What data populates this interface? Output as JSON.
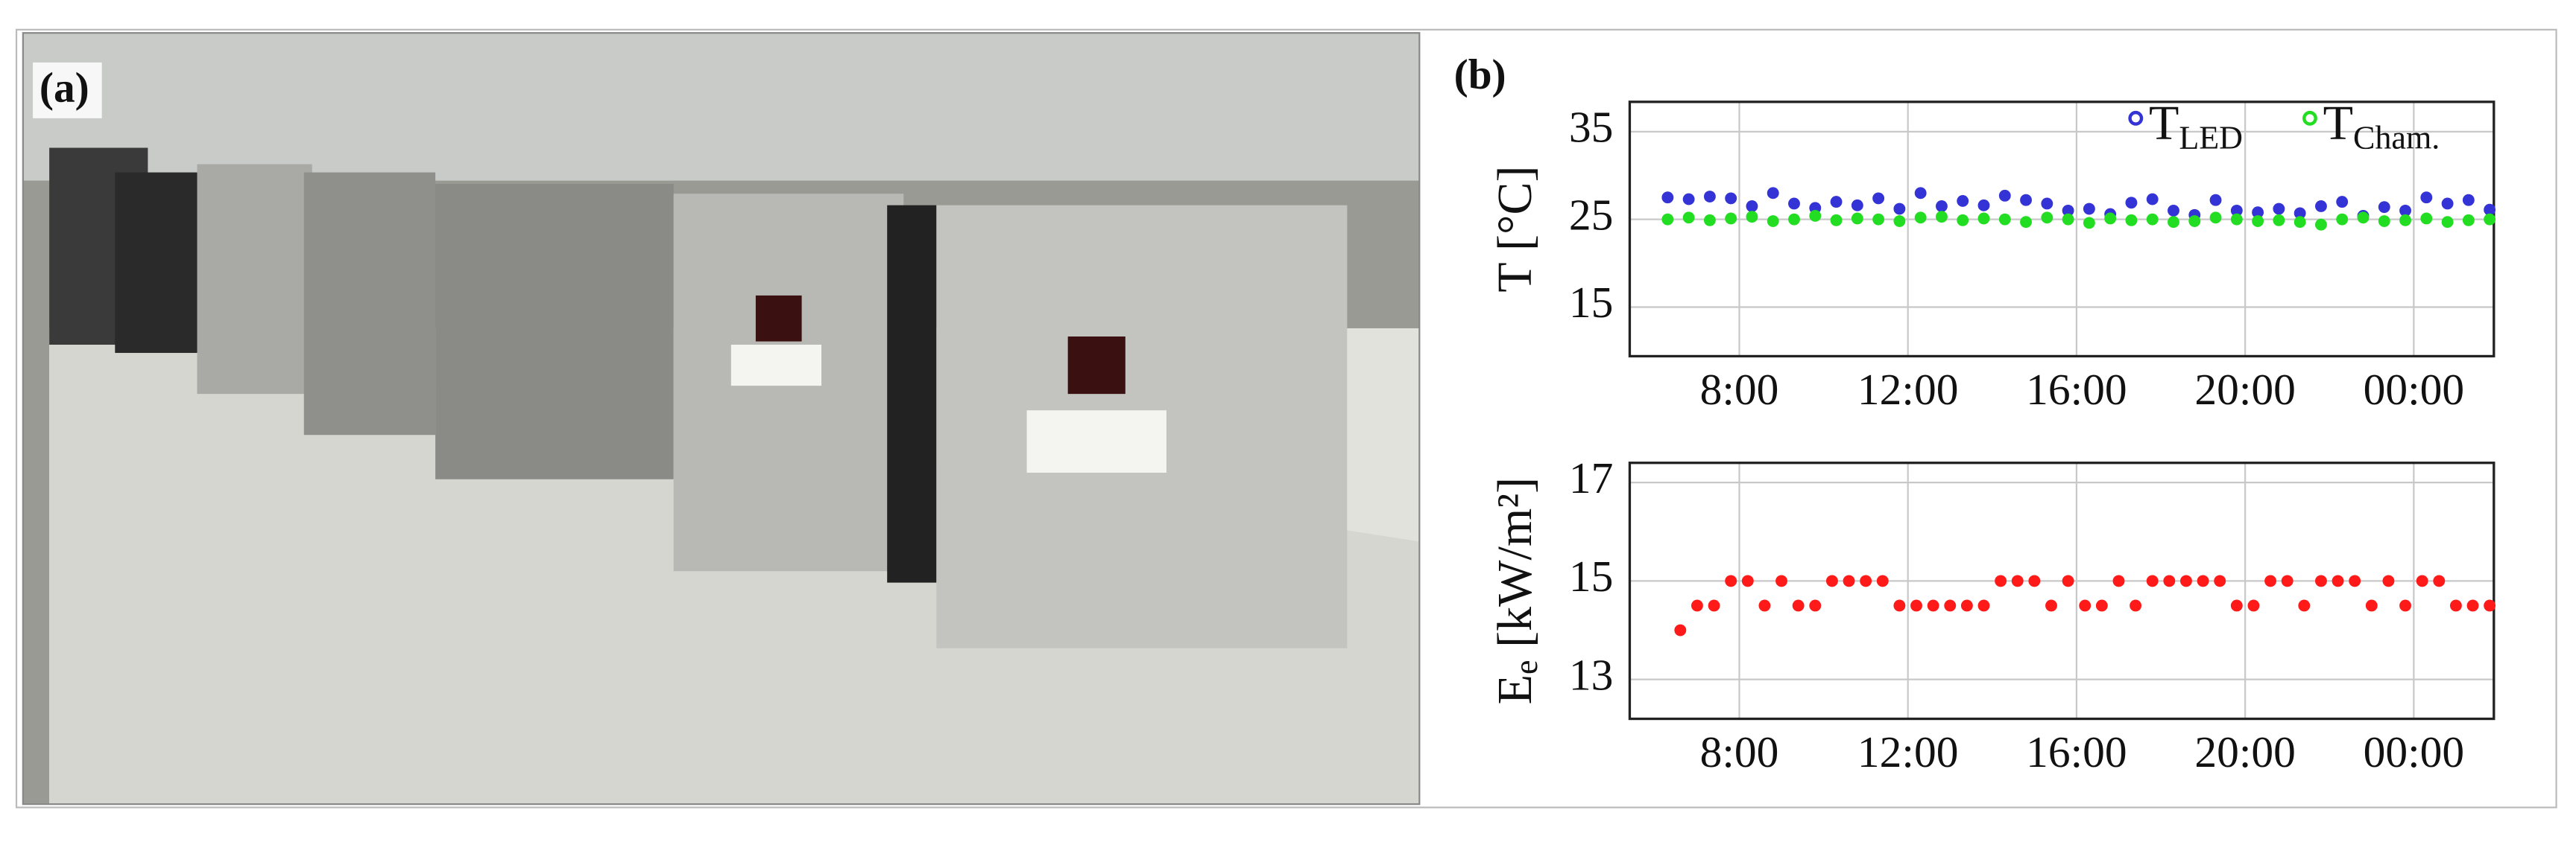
{
  "labels": [
    "(a)",
    "(b)"
  ],
  "chart_data": [
    {
      "type": "scatter",
      "ylabel": "T [°C]",
      "x": [
        6.3,
        6.8,
        7.3,
        7.8,
        8.3,
        8.8,
        9.3,
        9.8,
        10.3,
        10.8,
        11.3,
        11.8,
        12.3,
        12.8,
        13.3,
        13.8,
        14.3,
        14.8,
        15.3,
        15.8,
        16.3,
        16.8,
        17.3,
        17.8,
        18.3,
        18.8,
        19.3,
        19.8,
        20.3,
        20.8,
        21.3,
        21.8,
        22.3,
        22.8,
        23.3,
        23.8,
        24.3,
        24.8,
        25.3,
        25.8
      ],
      "series": [
        {
          "name": "T",
          "name_sub": "LED",
          "color": "#3434d6",
          "values": [
            27.5,
            27.3,
            27.6,
            27.4,
            26.5,
            28,
            26.8,
            26.3,
            27,
            26.6,
            27.4,
            26.2,
            28,
            26.5,
            27.1,
            26.6,
            27.7,
            27.2,
            26.8,
            26,
            26.2,
            25.6,
            26.9,
            27.3,
            26,
            25.5,
            27.2,
            26,
            25.8,
            26.2,
            25.7,
            26.5,
            27,
            25.4,
            26.4,
            26,
            27.5,
            26.8,
            27.2,
            26.1
          ]
        },
        {
          "name": "T",
          "name_sub": "Cham.",
          "color": "#22dd22",
          "values": [
            25,
            25.2,
            24.9,
            25.1,
            25.3,
            24.8,
            25,
            25.4,
            24.9,
            25.1,
            25,
            24.8,
            25.2,
            25.3,
            24.9,
            25.1,
            25,
            24.7,
            25.2,
            25,
            24.6,
            25.1,
            24.9,
            25,
            24.7,
            24.8,
            25.2,
            25,
            24.8,
            24.9,
            24.7,
            24.4,
            25,
            25.2,
            24.8,
            24.9,
            25.1,
            24.7,
            24.9,
            25
          ]
        }
      ],
      "xlim": [
        5.4,
        25.9
      ],
      "xticks": [
        {
          "value": 8,
          "label": "8:00"
        },
        {
          "value": 12,
          "label": "12:00"
        },
        {
          "value": 16,
          "label": "16:00"
        },
        {
          "value": 20,
          "label": "20:00"
        },
        {
          "value": 24,
          "label": "00:00"
        }
      ],
      "ylim": [
        9.4,
        38.4
      ],
      "yticks": [
        15,
        25,
        35
      ],
      "grid": true,
      "legend": "top-right"
    },
    {
      "type": "scatter",
      "ylabel_parts": [
        "E",
        "e",
        " [kW/m²]"
      ],
      "x": [
        6.6,
        7,
        7.4,
        7.8,
        8.2,
        8.6,
        9,
        9.4,
        9.8,
        10.2,
        10.6,
        11,
        11.4,
        11.8,
        12.2,
        12.6,
        13,
        13.4,
        13.8,
        14.2,
        14.6,
        15,
        15.4,
        15.8,
        16.2,
        16.6,
        17,
        17.4,
        17.8,
        18.2,
        18.6,
        19,
        19.4,
        19.8,
        20.2,
        20.6,
        21,
        21.4,
        21.8,
        22.2,
        22.6,
        23,
        23.4,
        23.8,
        24.2,
        24.6,
        25,
        25.4,
        25.8
      ],
      "series": [
        {
          "color": "#ff1a1a",
          "values": [
            14,
            14.5,
            14.5,
            15,
            15,
            14.5,
            15,
            14.5,
            14.5,
            15,
            15,
            15,
            15,
            14.5,
            14.5,
            14.5,
            14.5,
            14.5,
            14.5,
            15,
            15,
            15,
            14.5,
            15,
            14.5,
            14.5,
            15,
            14.5,
            15,
            15,
            15,
            15,
            15,
            14.5,
            14.5,
            15,
            15,
            14.5,
            15,
            15,
            15,
            14.5,
            15,
            14.5,
            15,
            15,
            14.5,
            14.5,
            14.5
          ]
        }
      ],
      "xlim": [
        5.4,
        25.9
      ],
      "xticks": [
        {
          "value": 8,
          "label": "8:00"
        },
        {
          "value": 12,
          "label": "12:00"
        },
        {
          "value": 16,
          "label": "16:00"
        },
        {
          "value": 20,
          "label": "20:00"
        },
        {
          "value": 24,
          "label": "00:00"
        }
      ],
      "ylim": [
        12.2,
        17.4
      ],
      "yticks": [
        13,
        15,
        17
      ],
      "grid": true
    }
  ]
}
